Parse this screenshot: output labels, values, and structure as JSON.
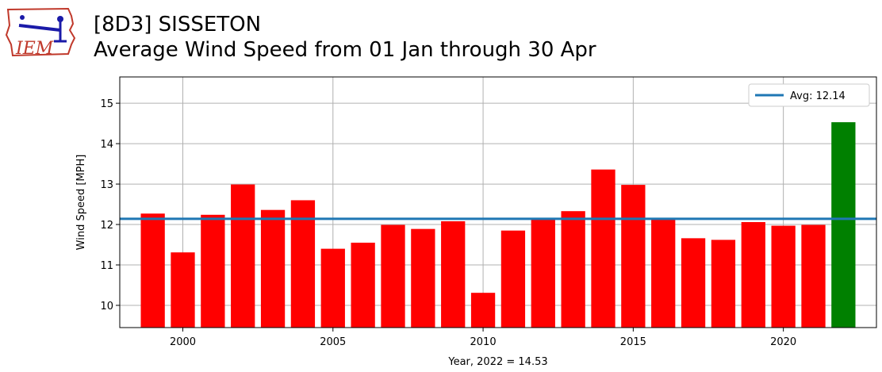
{
  "header": {
    "logo_text": "IEM",
    "title": "[8D3] SISSETON",
    "subtitle": "Average Wind Speed from 01 Jan through 30 Apr"
  },
  "chart_data": {
    "type": "bar",
    "x": [
      1999,
      2000,
      2001,
      2002,
      2003,
      2004,
      2005,
      2006,
      2007,
      2008,
      2009,
      2010,
      2011,
      2012,
      2013,
      2014,
      2015,
      2016,
      2017,
      2018,
      2019,
      2020,
      2021,
      2022
    ],
    "values": [
      12.27,
      11.31,
      12.24,
      12.99,
      12.36,
      12.6,
      11.4,
      11.55,
      11.99,
      11.89,
      12.08,
      10.31,
      11.85,
      12.15,
      12.33,
      13.36,
      12.98,
      12.15,
      11.66,
      11.62,
      12.06,
      11.97,
      11.99,
      14.53
    ],
    "bar_colors": [
      "#ff0000",
      "#ff0000",
      "#ff0000",
      "#ff0000",
      "#ff0000",
      "#ff0000",
      "#ff0000",
      "#ff0000",
      "#ff0000",
      "#ff0000",
      "#ff0000",
      "#ff0000",
      "#ff0000",
      "#ff0000",
      "#ff0000",
      "#ff0000",
      "#ff0000",
      "#ff0000",
      "#ff0000",
      "#ff0000",
      "#ff0000",
      "#ff0000",
      "#ff0000",
      "#008000"
    ],
    "average": 12.14,
    "average_color": "#1f77b4",
    "legend": {
      "label": "Avg: 12.14",
      "position": "top-right"
    },
    "xlabel": "Year, 2022 = 14.53",
    "ylabel": "Wind Speed [MPH]",
    "xlim": [
      1997.9,
      2023.1
    ],
    "ylim": [
      9.45,
      15.65
    ],
    "xticks": [
      2000,
      2005,
      2010,
      2015,
      2020
    ],
    "yticks": [
      10,
      11,
      12,
      13,
      14,
      15
    ],
    "grid": true
  }
}
